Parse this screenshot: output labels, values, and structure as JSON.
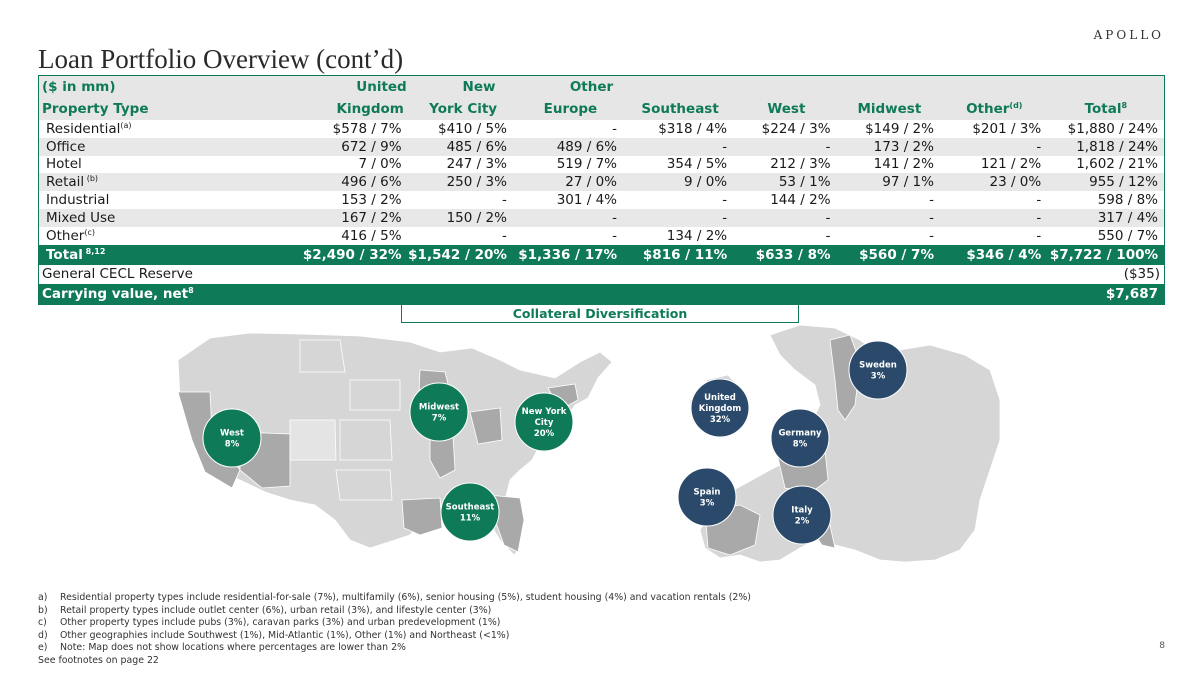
{
  "brand": "APOLLO",
  "title": "Loan Portfolio Overview (cont’d)",
  "table": {
    "header1": [
      "($ in mm)",
      "United",
      "New",
      "Other",
      "",
      "",
      "",
      "",
      ""
    ],
    "header2": [
      "Property Type",
      "Kingdom",
      "York City",
      "Europe",
      "Southeast",
      "West",
      "Midwest",
      "Other",
      "Total"
    ],
    "header2_sup": {
      "other": "(d)",
      "total": "8"
    },
    "rows": [
      {
        "label": "Residential",
        "sup": "(a)",
        "cells": [
          "$578  / 7%",
          "$410  / 5%",
          "-",
          "$318  / 4%",
          "$224  / 3%",
          "$149  / 2%",
          "$201  / 3%",
          "$1,880  / 24%"
        ]
      },
      {
        "label": "Office",
        "sup": "",
        "cells": [
          "672  / 9%",
          "485  / 6%",
          "489  / 6%",
          "-",
          "-",
          "173  / 2%",
          "-",
          "1,818  / 24%"
        ]
      },
      {
        "label": "Hotel",
        "sup": "",
        "cells": [
          "7  / 0%",
          "247  / 3%",
          "519  / 7%",
          "354  / 5%",
          "212  / 3%",
          "141  / 2%",
          "121  / 2%",
          "1,602  / 21%"
        ]
      },
      {
        "label": "Retail",
        "sup": " (b)",
        "cells": [
          "496  / 6%",
          "250  / 3%",
          "27  / 0%",
          "9  / 0%",
          "53  / 1%",
          "97  / 1%",
          "23  / 0%",
          "955  / 12%"
        ]
      },
      {
        "label": "Industrial",
        "sup": "",
        "cells": [
          "153  / 2%",
          "-",
          "301  / 4%",
          "-",
          "144  / 2%",
          "-",
          "-",
          "598  / 8%"
        ]
      },
      {
        "label": "Mixed Use",
        "sup": "",
        "cells": [
          "167  / 2%",
          "150  / 2%",
          "-",
          "-",
          "-",
          "-",
          "-",
          "317  / 4%"
        ]
      },
      {
        "label": "Other",
        "sup": "(c)",
        "cells": [
          "416  / 5%",
          "-",
          "-",
          "134  / 2%",
          "-",
          "-",
          "-",
          "550  / 7%"
        ]
      }
    ],
    "total": {
      "label": "Total",
      "sup": " 8,12",
      "cells": [
        "$2,490 / 32%",
        "$1,542 / 20%",
        "$1,336 / 17%",
        "$816 / 11%",
        "$633 / 8%",
        "$560 / 7%",
        "$346 / 4%",
        "$7,722 / 100%"
      ]
    },
    "cecl": {
      "label": "General CECL Reserve",
      "value": "($35)"
    },
    "carrying": {
      "label": "Carrying value, net",
      "sup": "8",
      "value": "$7,687"
    }
  },
  "diversification_title": "Collateral Diversification",
  "us_bubbles": [
    {
      "name": "West",
      "pct": "8%"
    },
    {
      "name": "Midwest",
      "pct": "7%"
    },
    {
      "name": "New York City",
      "line1": "New York",
      "line2": "City",
      "pct": "20%"
    },
    {
      "name": "Southeast",
      "pct": "11%"
    }
  ],
  "eu_bubbles": [
    {
      "name": "Sweden",
      "pct": "3%"
    },
    {
      "name": "United Kingdom",
      "line1": "United",
      "line2": "Kingdom",
      "pct": "32%"
    },
    {
      "name": "Germany",
      "pct": "8%"
    },
    {
      "name": "Spain",
      "pct": "3%"
    },
    {
      "name": "Italy",
      "pct": "2%"
    }
  ],
  "colors": {
    "green": "#0f7a58",
    "navy": "#2b4a6b",
    "map_light": "#d6d6d6",
    "map_mid": "#a9a9a9"
  },
  "footnotes": [
    {
      "label": "a)",
      "text": "Residential property types include residential-for-sale (7%), multifamily (6%), senior housing (5%), student housing (4%) and vacation rentals (2%)"
    },
    {
      "label": "b)",
      "text": "Retail property types include outlet center (6%), urban retail (3%), and lifestyle center (3%)"
    },
    {
      "label": "c)",
      "text": "Other property types include pubs (3%), caravan parks (3%) and urban predevelopment (1%)"
    },
    {
      "label": "d)",
      "text": "Other geographies include Southwest (1%), Mid-Atlantic (1%), Other (1%) and Northeast (<1%)"
    },
    {
      "label": "e)",
      "text": "Note: Map does not show locations where percentages are lower than 2%"
    }
  ],
  "see_footnotes": "See footnotes on page 22",
  "page_number": "8"
}
